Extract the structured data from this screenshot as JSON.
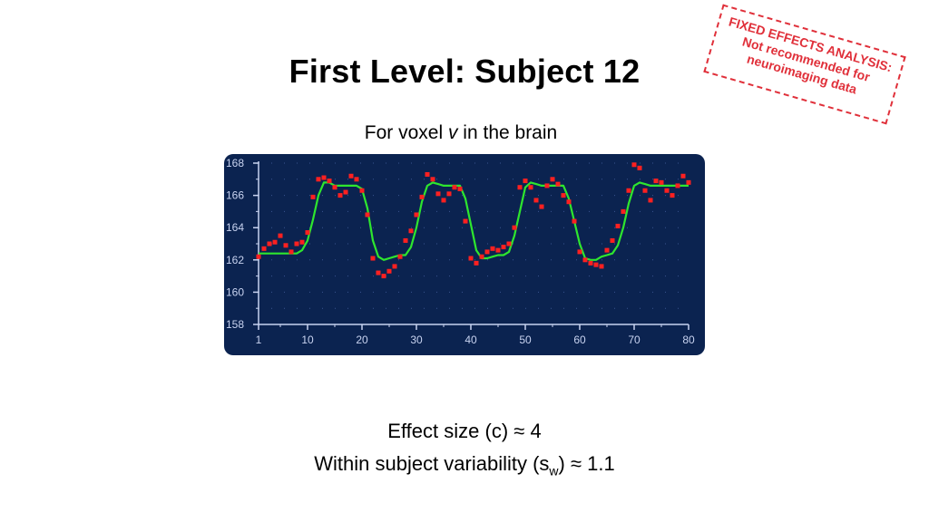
{
  "title": "First Level: Subject 12",
  "stamp": {
    "line1": "FIXED EFFECTS ANALYSIS:",
    "line2": "Not recommended for",
    "line3": "neuroimaging data",
    "color": "#e0303a"
  },
  "subtitle": {
    "prefix": "For voxel ",
    "variable": "v",
    "suffix": " in the brain"
  },
  "stats": {
    "effect_size": "Effect size (c) ≈ 4",
    "variability_prefix": "Within subject variability (s",
    "variability_sub": "w",
    "variability_suffix": ") ≈ 1.1"
  },
  "colors": {
    "panel_bg": "#0b2350",
    "axis": "#c8d3f0",
    "model_line": "#2ee62e",
    "points": "#ff2020"
  },
  "chart_data": {
    "type": "scatter",
    "title": "",
    "xlabel": "",
    "ylabel": "",
    "xlim": [
      1,
      80
    ],
    "ylim": [
      158,
      168
    ],
    "xticks": [
      1,
      10,
      20,
      30,
      40,
      50,
      60,
      70,
      80
    ],
    "yticks": [
      158,
      160,
      162,
      164,
      166,
      168
    ],
    "grid": "dotted",
    "series": [
      {
        "type": "scatter",
        "x": [
          1,
          2,
          3,
          4,
          5,
          6,
          7,
          8,
          9,
          10,
          11,
          12,
          13,
          14,
          15,
          16,
          17,
          18,
          19,
          20,
          21,
          22,
          23,
          24,
          25,
          26,
          27,
          28,
          29,
          30,
          31,
          32,
          33,
          34,
          35,
          36,
          37,
          38,
          39,
          40,
          41,
          42,
          43,
          44,
          45,
          46,
          47,
          48,
          49,
          50,
          51,
          52,
          53,
          54,
          55,
          56,
          57,
          58,
          59,
          60,
          61,
          62,
          63,
          64,
          65,
          66,
          67,
          68,
          69,
          70,
          71,
          72,
          73,
          74,
          75,
          76,
          77,
          78,
          79,
          80
        ],
        "values": [
          162.2,
          162.7,
          163.0,
          163.1,
          163.5,
          162.9,
          162.5,
          163.0,
          163.1,
          163.7,
          165.9,
          167.0,
          167.1,
          166.9,
          166.5,
          166.0,
          166.2,
          167.2,
          167.0,
          166.3,
          164.8,
          162.1,
          161.2,
          161.0,
          161.3,
          161.6,
          162.2,
          163.2,
          163.8,
          164.8,
          165.9,
          167.3,
          167.0,
          166.1,
          165.7,
          166.1,
          166.5,
          166.4,
          164.4,
          162.1,
          161.8,
          162.2,
          162.5,
          162.7,
          162.6,
          162.8,
          163.0,
          164.0,
          166.5,
          166.9,
          166.5,
          165.7,
          165.3,
          166.6,
          167.0,
          166.7,
          166.0,
          165.6,
          164.4,
          162.5,
          162.0,
          161.8,
          161.7,
          161.6,
          162.6,
          163.2,
          164.1,
          165.0,
          166.3,
          167.9,
          167.7,
          166.3,
          165.7,
          166.9,
          166.8,
          166.3,
          166.0,
          166.6,
          167.2,
          166.8
        ]
      },
      {
        "type": "line",
        "x": [
          1,
          2,
          3,
          4,
          5,
          6,
          7,
          8,
          9,
          10,
          11,
          12,
          13,
          14,
          15,
          16,
          17,
          18,
          19,
          20,
          21,
          22,
          23,
          24,
          25,
          26,
          27,
          28,
          29,
          30,
          31,
          32,
          33,
          34,
          35,
          36,
          37,
          38,
          39,
          40,
          41,
          42,
          43,
          44,
          45,
          46,
          47,
          48,
          49,
          50,
          51,
          52,
          53,
          54,
          55,
          56,
          57,
          58,
          59,
          60,
          61,
          62,
          63,
          64,
          65,
          66,
          67,
          68,
          69,
          70,
          71,
          72,
          73,
          74,
          75,
          76,
          77,
          78,
          79,
          80
        ],
        "values": [
          162.4,
          162.4,
          162.4,
          162.4,
          162.4,
          162.4,
          162.4,
          162.4,
          162.6,
          163.2,
          164.5,
          166.0,
          166.8,
          166.8,
          166.6,
          166.6,
          166.6,
          166.6,
          166.6,
          166.4,
          165.2,
          163.2,
          162.2,
          162.0,
          162.1,
          162.2,
          162.3,
          162.3,
          162.8,
          164.0,
          165.6,
          166.6,
          166.8,
          166.7,
          166.6,
          166.6,
          166.6,
          166.6,
          165.8,
          164.2,
          162.6,
          162.1,
          162.1,
          162.2,
          162.3,
          162.3,
          162.5,
          163.5,
          165.0,
          166.5,
          166.8,
          166.7,
          166.6,
          166.6,
          166.6,
          166.6,
          166.6,
          165.8,
          164.4,
          163.0,
          162.1,
          162.0,
          162.0,
          162.2,
          162.3,
          162.4,
          162.9,
          164.0,
          165.5,
          166.6,
          166.8,
          166.7,
          166.6,
          166.6,
          166.6,
          166.6,
          166.6,
          166.6,
          166.6,
          166.6
        ]
      }
    ]
  }
}
